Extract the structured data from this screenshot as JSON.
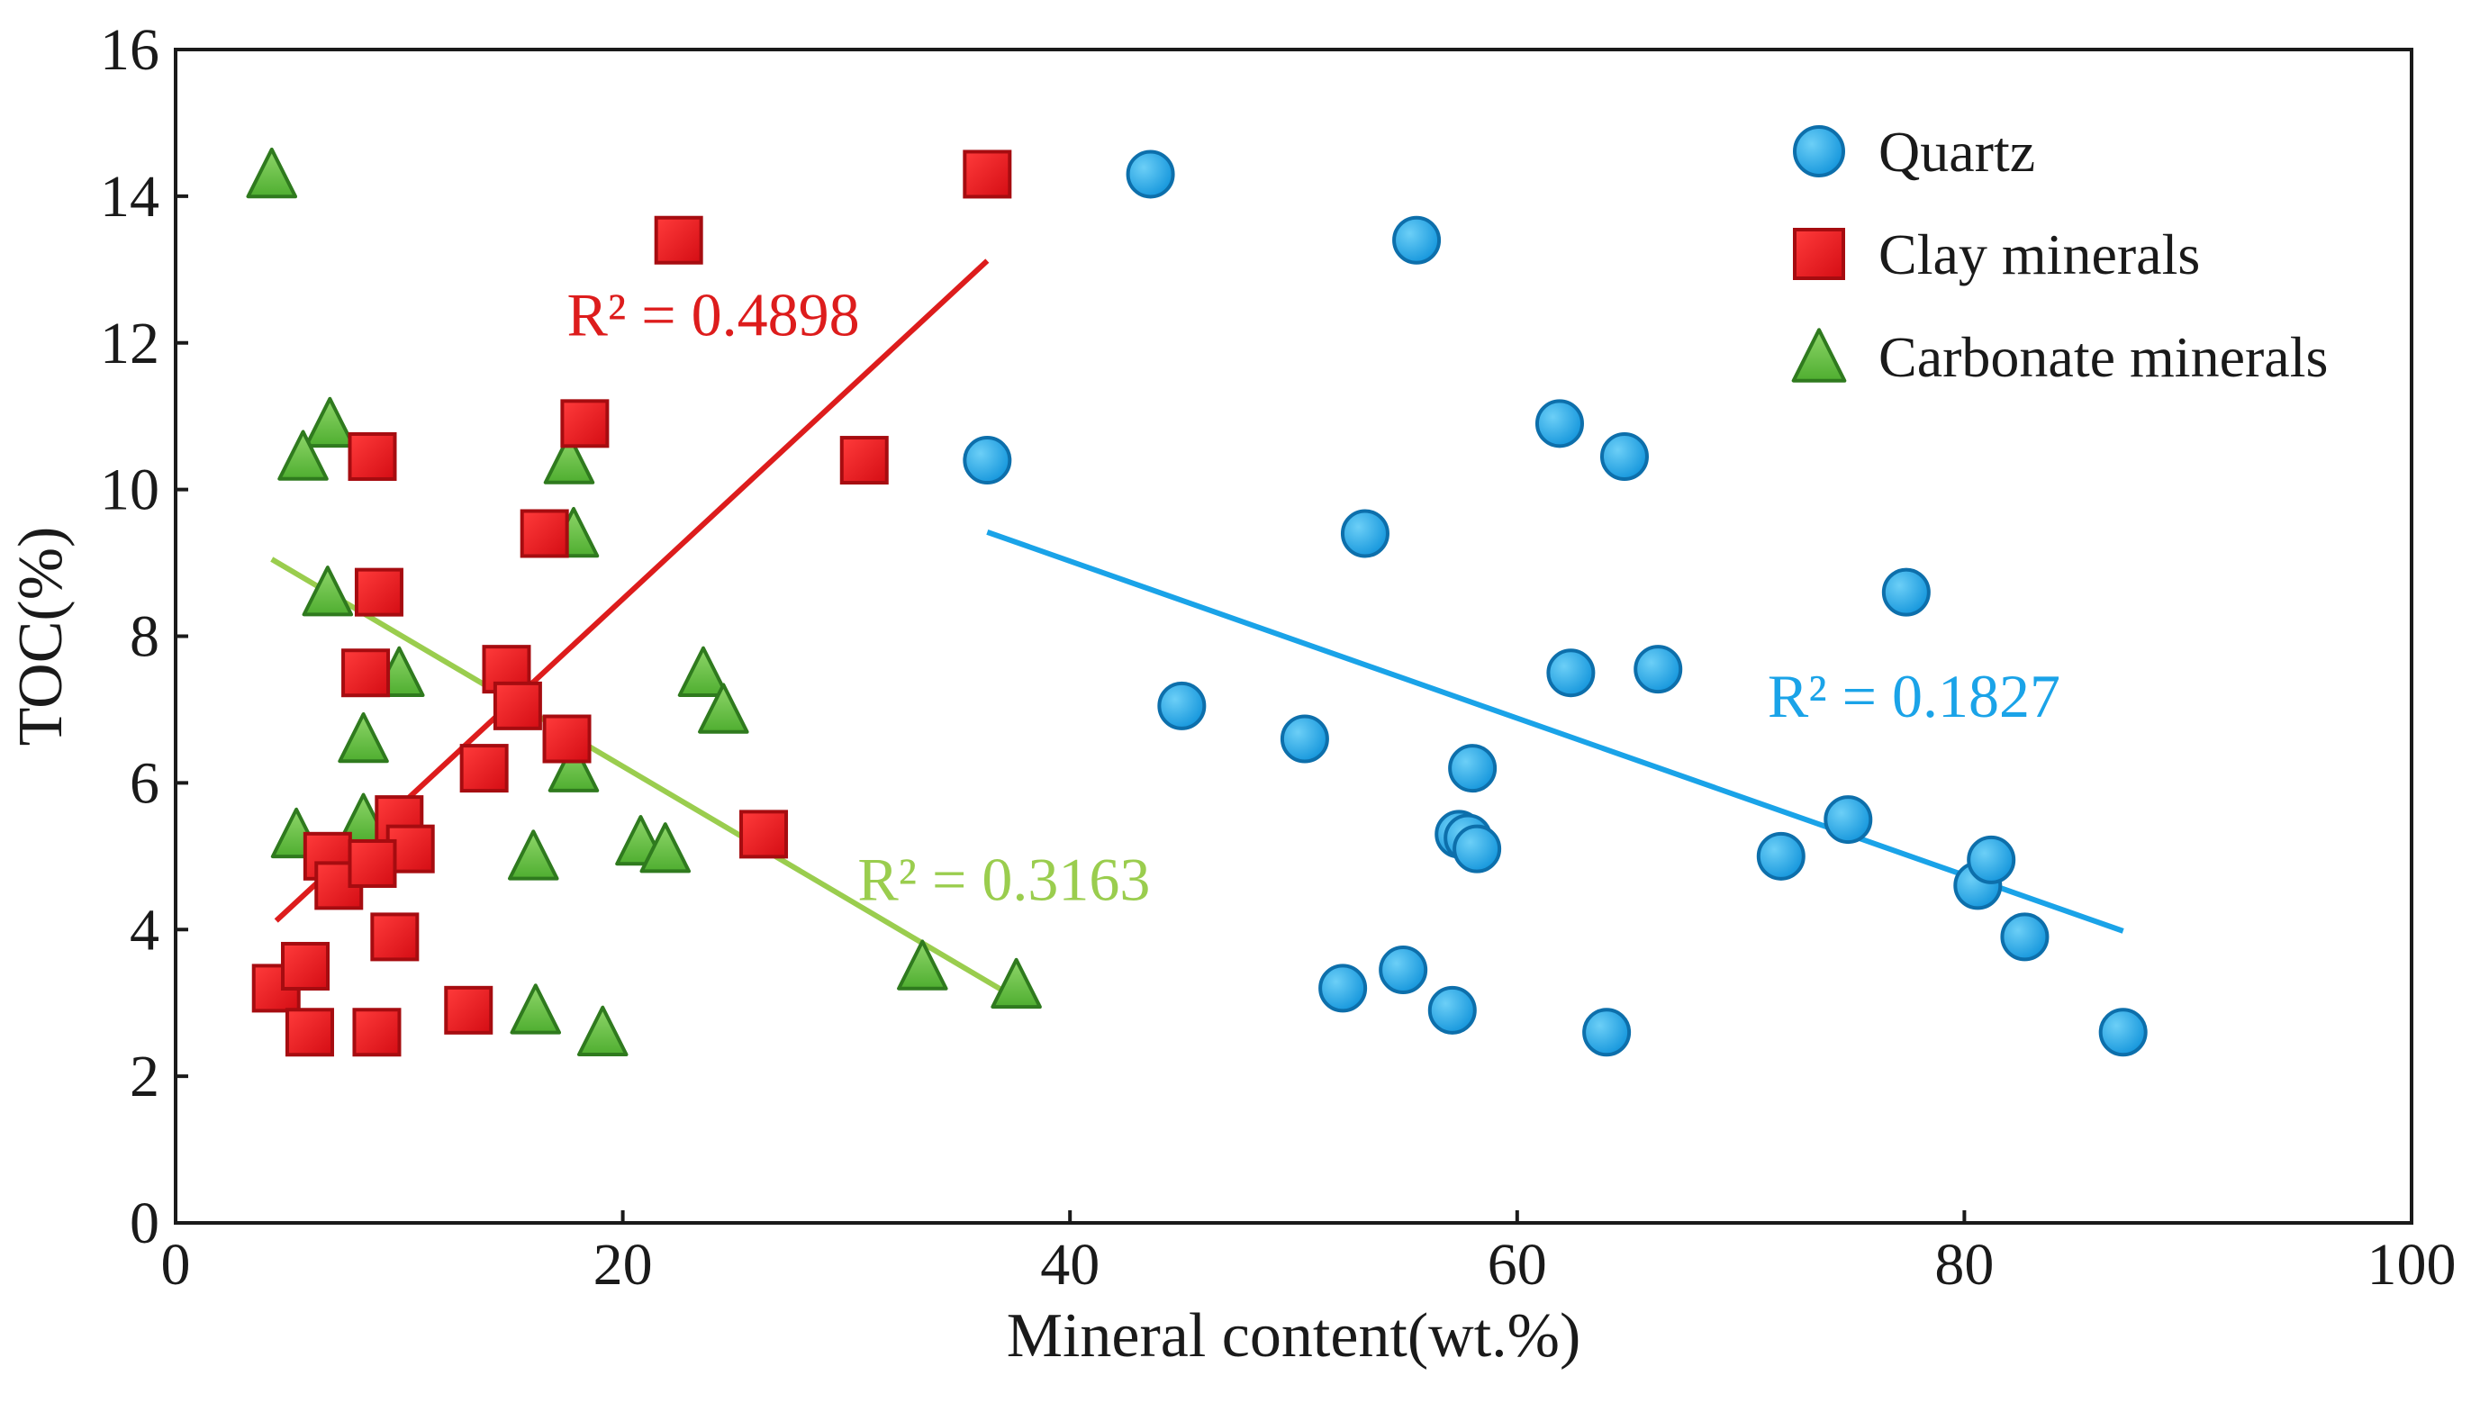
{
  "chart_data": {
    "type": "scatter",
    "xlabel": "Mineral content(wt.%)",
    "ylabel": "TOC(%)",
    "xlim": [
      0,
      100
    ],
    "ylim": [
      0,
      16
    ],
    "xticks": [
      0,
      20,
      40,
      60,
      80,
      100
    ],
    "yticks": [
      0,
      2,
      4,
      6,
      8,
      10,
      12,
      14,
      16
    ],
    "grid": false,
    "legend_position": "top-right",
    "series": [
      {
        "name": "Quartz",
        "marker": "circle",
        "color": "#1aa3e8",
        "edge_color": "#0a5f9a",
        "x": [
          43.6,
          55.5,
          36.3,
          61.9,
          64.8,
          53.2,
          77.4,
          45.0,
          62.4,
          66.3,
          50.5,
          58.0,
          57.4,
          57.8,
          58.2,
          71.8,
          74.8,
          80.6,
          81.2,
          82.7,
          52.2,
          54.9,
          57.1,
          64.0,
          87.1
        ],
        "y": [
          14.3,
          13.4,
          10.4,
          10.9,
          10.45,
          9.4,
          8.6,
          7.05,
          7.5,
          7.55,
          6.6,
          6.2,
          5.3,
          5.25,
          5.1,
          5.0,
          5.5,
          4.6,
          4.95,
          3.9,
          3.2,
          3.45,
          2.9,
          2.6,
          2.6
        ]
      },
      {
        "name": "Clay minerals",
        "marker": "square",
        "color": "#e0141b",
        "edge_color": "#9a0a0f",
        "x": [
          36.3,
          22.5,
          18.3,
          8.8,
          30.8,
          16.5,
          9.1,
          8.5,
          14.8,
          15.3,
          17.5,
          13.8,
          10.0,
          10.5,
          6.8,
          7.3,
          8.8,
          26.3,
          9.8,
          4.5,
          5.8,
          6.0,
          9.0,
          13.1
        ],
        "y": [
          14.3,
          13.4,
          10.9,
          10.45,
          10.4,
          9.4,
          8.6,
          7.5,
          7.55,
          7.05,
          6.6,
          6.2,
          5.5,
          5.1,
          5.0,
          4.6,
          4.9,
          5.3,
          3.9,
          3.2,
          3.5,
          2.6,
          2.6,
          2.9
        ]
      },
      {
        "name": "Carbonate minerals",
        "marker": "triangle",
        "color": "#5cb83c",
        "edge_color": "#2f7a1e",
        "x": [
          4.3,
          6.9,
          5.7,
          17.6,
          17.8,
          6.8,
          10.0,
          23.6,
          24.5,
          8.4,
          17.8,
          5.4,
          8.4,
          20.8,
          21.9,
          16.0,
          33.4,
          37.6,
          16.1,
          19.1
        ],
        "y": [
          14.3,
          10.9,
          10.45,
          10.4,
          9.4,
          8.6,
          7.5,
          7.5,
          7.0,
          6.6,
          6.2,
          5.3,
          5.5,
          5.2,
          5.1,
          5.0,
          3.5,
          3.25,
          2.9,
          2.6
        ]
      }
    ],
    "trendlines": [
      {
        "series": "Quartz",
        "label": "R² = 0.1827",
        "color": "#1aa3e8",
        "x": [
          36.3,
          87.1
        ],
        "y": [
          9.42,
          3.98
        ]
      },
      {
        "series": "Clay minerals",
        "label": "R² = 0.4898",
        "color": "#dd1c1c",
        "x": [
          4.5,
          36.3
        ],
        "y": [
          4.12,
          13.12
        ]
      },
      {
        "series": "Carbonate minerals",
        "label": "R² = 0.3163",
        "color": "#9acd4e",
        "x": [
          4.3,
          37.6
        ],
        "y": [
          9.05,
          3.06
        ]
      }
    ]
  }
}
